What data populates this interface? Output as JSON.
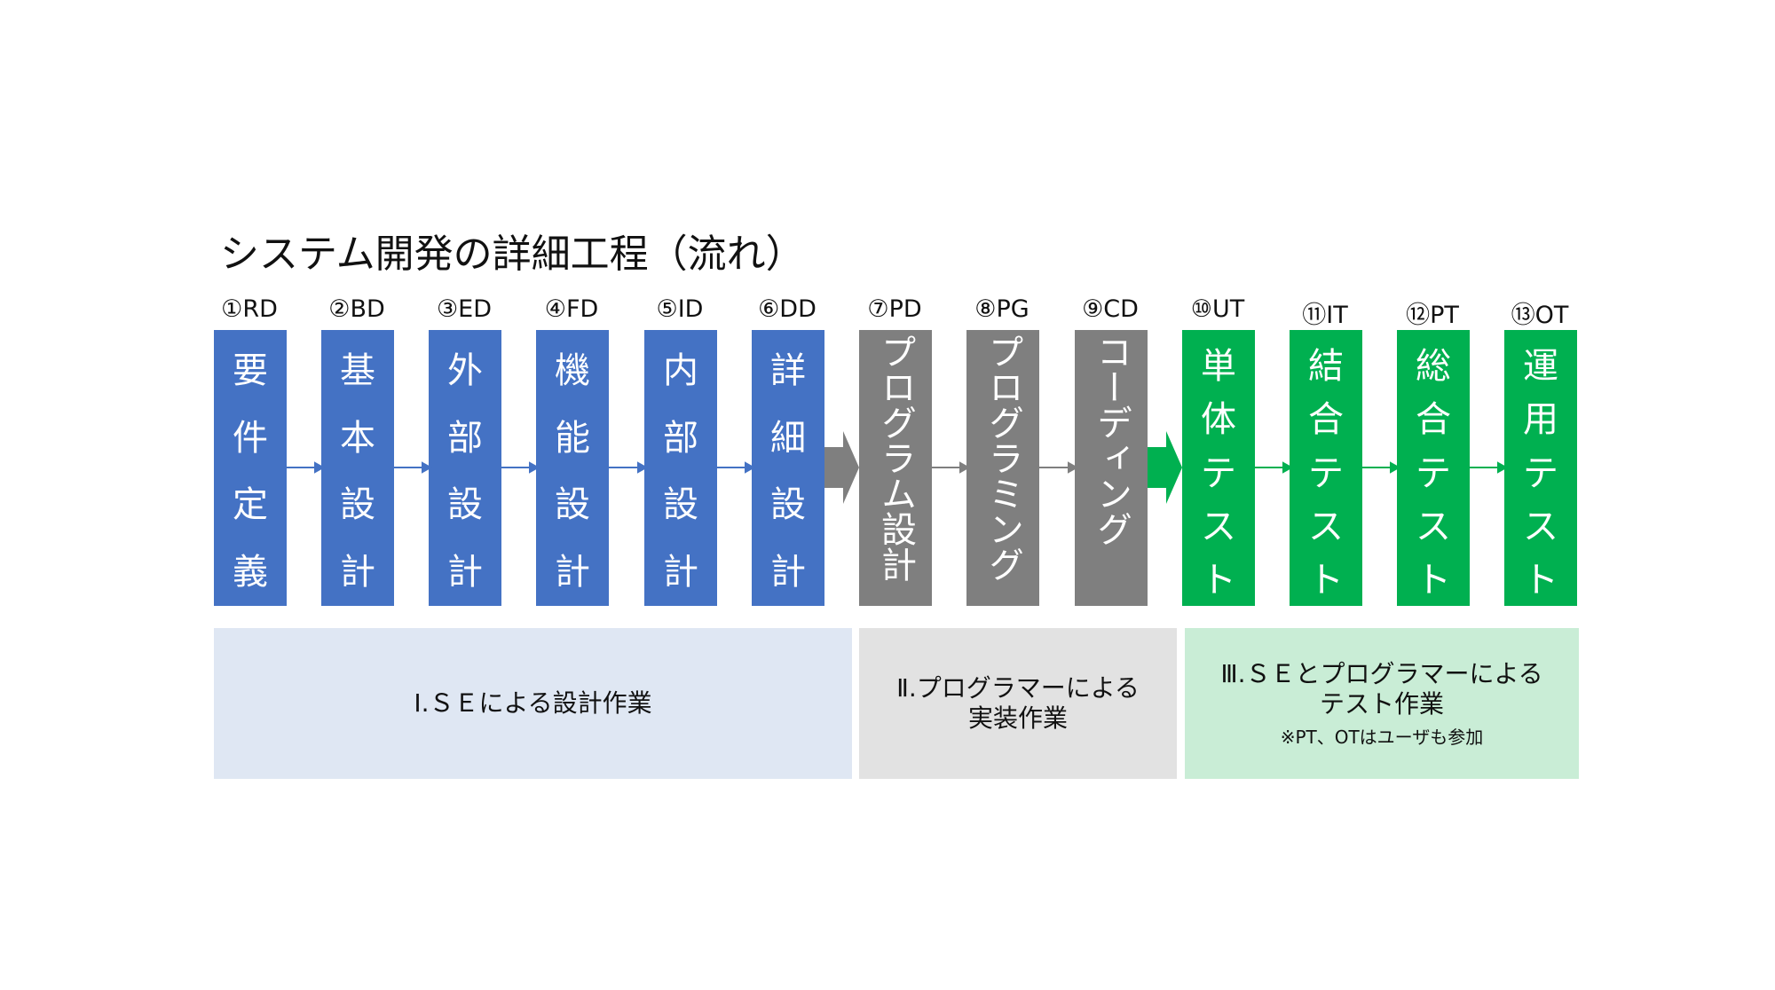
{
  "title": "システム開発の詳細工程（流れ）",
  "steps": [
    {
      "label": "①RD",
      "text": "要件定義",
      "color": "#4472C4"
    },
    {
      "label": "②BD",
      "text": "基本設計",
      "color": "#4472C4"
    },
    {
      "label": "③ED",
      "text": "外部設計",
      "color": "#4472C4"
    },
    {
      "label": "④FD",
      "text": "機能設計",
      "color": "#4472C4"
    },
    {
      "label": "⑤ID",
      "text": "内部設計",
      "color": "#4472C4"
    },
    {
      "label": "⑥DD",
      "text": "詳細設計",
      "color": "#4472C4"
    },
    {
      "label": "⑦PD",
      "text": "プログラム設計",
      "color": "#7F7F7F"
    },
    {
      "label": "⑧PG",
      "text": "プログラミング",
      "color": "#7F7F7F"
    },
    {
      "label": "⑨CD",
      "text": "コーディング",
      "color": "#7F7F7F"
    },
    {
      "label": "⑩UT",
      "text": "単体テスト",
      "color": "#00B050"
    },
    {
      "label": "⑪IT",
      "text": "結合テスト",
      "color": "#00B050"
    },
    {
      "label": "⑫PT",
      "text": "総合テスト",
      "color": "#00B050"
    },
    {
      "label": "⑬OT",
      "text": "運用テスト",
      "color": "#00B050"
    }
  ],
  "phases": [
    {
      "text": "Ⅰ.ＳＥによる設計作業",
      "note": ""
    },
    {
      "text": "Ⅱ.プログラマーによる\n実装作業",
      "note": ""
    },
    {
      "text": "Ⅲ.ＳＥとプログラマーによる\nテスト作業",
      "note": "※PT、OTはユーザも参加"
    }
  ],
  "colors": {
    "design": "#4472C4",
    "implementation": "#7F7F7F",
    "test": "#00B050"
  }
}
